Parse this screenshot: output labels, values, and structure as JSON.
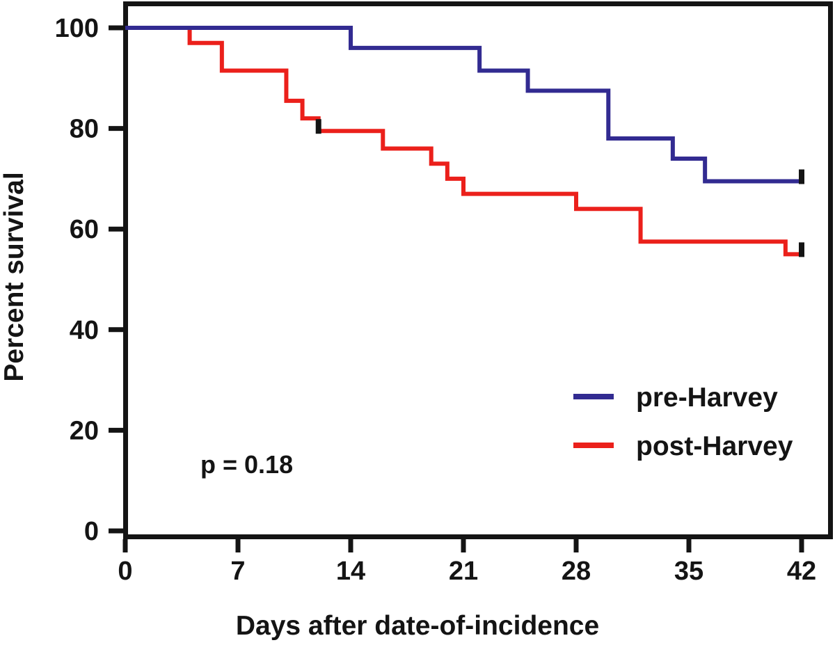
{
  "chart_data": {
    "type": "line",
    "subtype": "kaplan-meier-step",
    "title": "",
    "xlabel": "Days after date-of-incidence",
    "ylabel": "Percent survival",
    "xlim": [
      0,
      42
    ],
    "ylim": [
      0,
      100
    ],
    "x_ticks": [
      0,
      7,
      14,
      21,
      28,
      35,
      42
    ],
    "y_ticks": [
      100,
      80,
      60,
      40,
      20,
      0
    ],
    "grid": "off",
    "frame": "full-box",
    "annotation": "p = 0.18",
    "legend_position": "right-center",
    "colors": {
      "pre_harvey": "#322B91",
      "post_harvey": "#EB201B",
      "axis": "#141414",
      "censor_mark": "#141414",
      "background": "#FFFFFF"
    },
    "series": [
      {
        "name": "pre-Harvey",
        "color": "#322B91",
        "steps": [
          [
            0,
            100
          ],
          [
            14,
            100
          ],
          [
            14,
            96
          ],
          [
            22,
            96
          ],
          [
            22,
            91.5
          ],
          [
            25,
            91.5
          ],
          [
            25,
            87.5
          ],
          [
            30,
            87.5
          ],
          [
            30,
            78
          ],
          [
            34,
            78
          ],
          [
            34,
            74
          ],
          [
            36,
            74
          ],
          [
            36,
            69.5
          ],
          [
            42,
            69.5
          ]
        ],
        "censor_marks": [
          [
            42,
            69.5
          ]
        ]
      },
      {
        "name": "post-Harvey",
        "color": "#EB201B",
        "steps": [
          [
            0,
            100
          ],
          [
            4,
            100
          ],
          [
            4,
            97
          ],
          [
            6,
            97
          ],
          [
            6,
            91.5
          ],
          [
            10,
            91.5
          ],
          [
            10,
            85.5
          ],
          [
            11,
            85.5
          ],
          [
            11,
            82
          ],
          [
            12,
            82
          ],
          [
            12,
            79.5
          ],
          [
            16,
            79.5
          ],
          [
            16,
            76
          ],
          [
            19,
            76
          ],
          [
            19,
            73
          ],
          [
            20,
            73
          ],
          [
            20,
            70
          ],
          [
            21,
            70
          ],
          [
            21,
            67
          ],
          [
            28,
            67
          ],
          [
            28,
            64
          ],
          [
            32,
            64
          ],
          [
            32,
            57.5
          ],
          [
            41,
            57.5
          ],
          [
            41,
            55
          ],
          [
            42,
            55
          ]
        ],
        "censor_marks": [
          [
            12,
            79.5
          ],
          [
            42,
            55
          ]
        ]
      }
    ]
  }
}
